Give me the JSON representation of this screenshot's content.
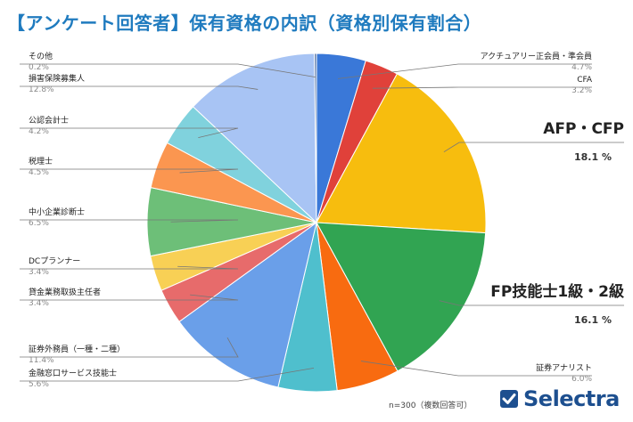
{
  "title": "【アンケート回答者】保有資格の内訳（資格別保有割合）",
  "note": "n=300（複数回答可）",
  "brand": "Selectra",
  "chart_data": {
    "type": "pie",
    "title": "【アンケート回答者】保有資格の内訳（資格別保有割合）",
    "unit": "%",
    "slices": [
      {
        "label": "アクチュアリー正会員・準会員",
        "value": 4.7,
        "value_label": "4.7%",
        "color": "#3a78d8"
      },
      {
        "label": "CFA",
        "value": 3.2,
        "value_label": "3.2%",
        "color": "#e0413a"
      },
      {
        "label": "AFP・CFP",
        "value": 18.1,
        "value_label": "18.1 %",
        "color": "#f7bd0e"
      },
      {
        "label": "FP技能士1級・2級",
        "value": 16.1,
        "value_label": "16.1 %",
        "color": "#31a452"
      },
      {
        "label": "証券アナリスト",
        "value": 6.0,
        "value_label": "6.0%",
        "color": "#f86b10"
      },
      {
        "label": "金融窓口サービス技能士",
        "value": 5.6,
        "value_label": "5.6%",
        "color": "#4fbfcd"
      },
      {
        "label": "証券外務員（一種・二種）",
        "value": 11.4,
        "value_label": "11.4%",
        "color": "#6a9fe9"
      },
      {
        "label": "貸金業務取扱主任者",
        "value": 3.4,
        "value_label": "3.4%",
        "color": "#e76b6b"
      },
      {
        "label": "DCプランナー",
        "value": 3.4,
        "value_label": "3.4%",
        "color": "#f8d055"
      },
      {
        "label": "中小企業診断士",
        "value": 6.5,
        "value_label": "6.5%",
        "color": "#6dbf78"
      },
      {
        "label": "税理士",
        "value": 4.5,
        "value_label": "4.5%",
        "color": "#fb9650"
      },
      {
        "label": "公認会計士",
        "value": 4.2,
        "value_label": "4.2%",
        "color": "#80d2dd"
      },
      {
        "label": "損害保険募集人",
        "value": 12.8,
        "value_label": "12.8%",
        "color": "#a8c4f4"
      },
      {
        "label": "その他",
        "value": 0.2,
        "value_label": "0.2%",
        "color": "#4f6fa3"
      }
    ]
  }
}
